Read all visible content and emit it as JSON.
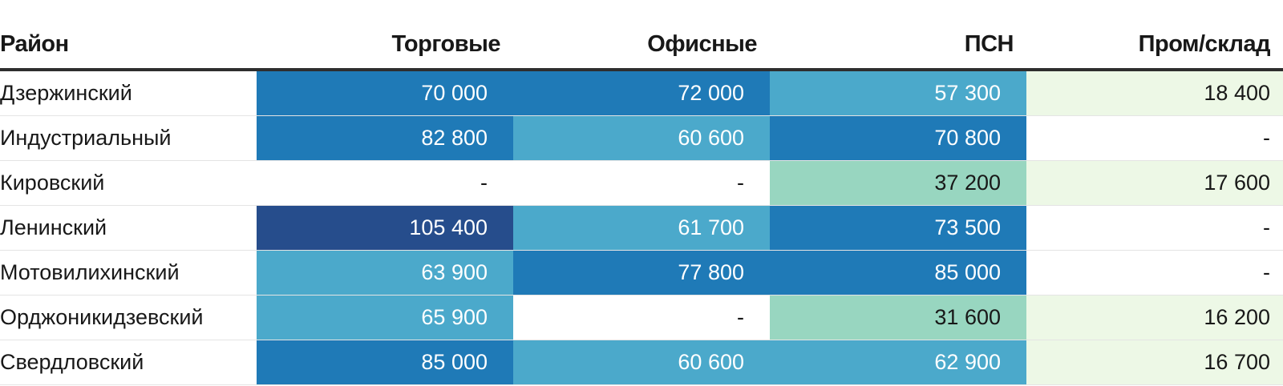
{
  "chart_data": {
    "type": "table",
    "columns": [
      "Район",
      "Торговые",
      "Офисные",
      "ПСН",
      "Пром/склад"
    ],
    "rows": [
      {
        "name": "Дзержинский",
        "values": [
          "70 000",
          "72 000",
          "57 300",
          "18 400"
        ]
      },
      {
        "name": "Индустриальный",
        "values": [
          "82 800",
          "60 600",
          "70 800",
          "-"
        ]
      },
      {
        "name": "Кировский",
        "values": [
          "-",
          "-",
          "37 200",
          "17 600"
        ]
      },
      {
        "name": "Ленинский",
        "values": [
          "105 400",
          "61 700",
          "73 500",
          "-"
        ]
      },
      {
        "name": "Мотовилихинский",
        "values": [
          "63 900",
          "77 800",
          "85 000",
          "-"
        ]
      },
      {
        "name": "Орджоникидзевский",
        "values": [
          "65 900",
          "-",
          "31 600",
          "16 200"
        ]
      },
      {
        "name": "Свердловский",
        "values": [
          "85 000",
          "60 600",
          "62 900",
          "16 700"
        ]
      }
    ],
    "color_scale": {
      "100000": "#264d8c",
      "70000": "#1f7ab7",
      "45000": "#4ba9cb",
      "30000": "#98d6c0",
      "0": "#edf8e6",
      "none": "#ffffff"
    },
    "text_colors": {
      "dark": "#181818",
      "light": "#ffffff"
    }
  }
}
